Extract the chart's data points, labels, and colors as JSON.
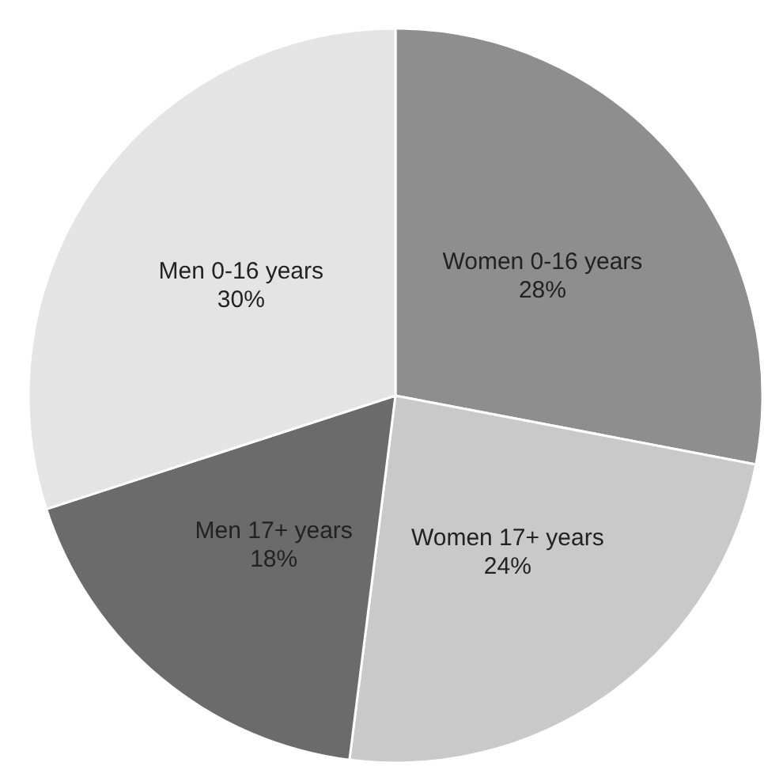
{
  "chart_data": {
    "type": "pie",
    "categories": [
      "Women 0-16 years",
      "Women 17+ years",
      "Men 17+ years",
      "Men 0-16 years"
    ],
    "values": [
      28,
      24,
      18,
      30
    ],
    "value_labels": [
      "28%",
      "24%",
      "18%",
      "30%"
    ],
    "colors": [
      "#8e8e8e",
      "#c9c9c9",
      "#6b6b6b",
      "#e4e4e4"
    ]
  }
}
